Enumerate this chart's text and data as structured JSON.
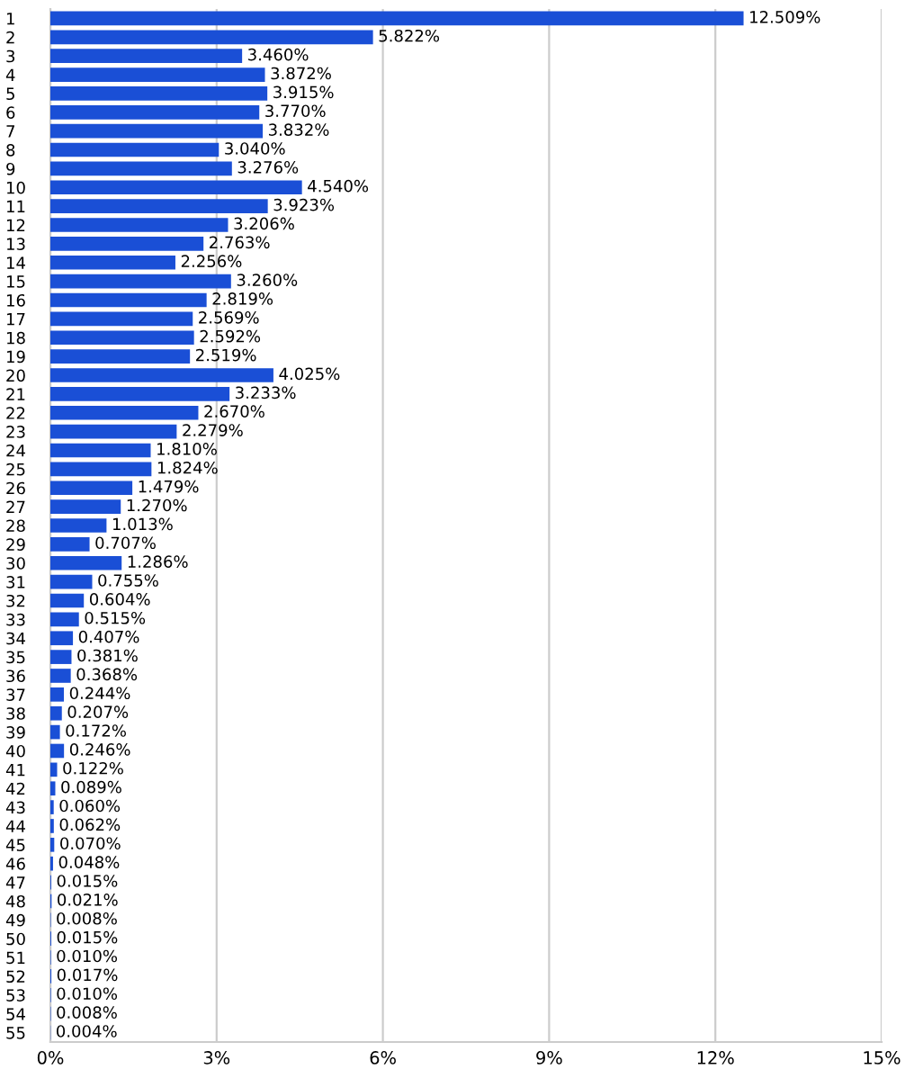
{
  "chart_data": {
    "type": "bar",
    "orientation": "horizontal",
    "categories": [
      "1",
      "2",
      "3",
      "4",
      "5",
      "6",
      "7",
      "8",
      "9",
      "10",
      "11",
      "12",
      "13",
      "14",
      "15",
      "16",
      "17",
      "18",
      "19",
      "20",
      "21",
      "22",
      "23",
      "24",
      "25",
      "26",
      "27",
      "28",
      "29",
      "30",
      "31",
      "32",
      "33",
      "34",
      "35",
      "36",
      "37",
      "38",
      "39",
      "40",
      "41",
      "42",
      "43",
      "44",
      "45",
      "46",
      "47",
      "48",
      "49",
      "50",
      "51",
      "52",
      "53",
      "54",
      "55"
    ],
    "values": [
      12.509,
      5.822,
      3.46,
      3.872,
      3.915,
      3.77,
      3.832,
      3.04,
      3.276,
      4.54,
      3.923,
      3.206,
      2.763,
      2.256,
      3.26,
      2.819,
      2.569,
      2.592,
      2.519,
      4.025,
      3.233,
      2.67,
      2.279,
      1.81,
      1.824,
      1.479,
      1.27,
      1.013,
      0.707,
      1.286,
      0.755,
      0.604,
      0.515,
      0.407,
      0.381,
      0.368,
      0.244,
      0.207,
      0.172,
      0.246,
      0.122,
      0.089,
      0.06,
      0.062,
      0.07,
      0.048,
      0.015,
      0.021,
      0.008,
      0.015,
      0.01,
      0.017,
      0.01,
      0.008,
      0.004
    ],
    "value_labels": [
      "12.509%",
      "5.822%",
      "3.460%",
      "3.872%",
      "3.915%",
      "3.770%",
      "3.832%",
      "3.040%",
      "3.276%",
      "4.540%",
      "3.923%",
      "3.206%",
      "2.763%",
      "2.256%",
      "3.260%",
      "2.819%",
      "2.569%",
      "2.592%",
      "2.519%",
      "4.025%",
      "3.233%",
      "2.670%",
      "2.279%",
      "1.810%",
      "1.824%",
      "1.479%",
      "1.270%",
      "1.013%",
      "0.707%",
      "1.286%",
      "0.755%",
      "0.604%",
      "0.515%",
      "0.407%",
      "0.381%",
      "0.368%",
      "0.244%",
      "0.207%",
      "0.172%",
      "0.246%",
      "0.122%",
      "0.089%",
      "0.060%",
      "0.062%",
      "0.070%",
      "0.048%",
      "0.015%",
      "0.021%",
      "0.008%",
      "0.015%",
      "0.010%",
      "0.017%",
      "0.010%",
      "0.008%",
      "0.004%"
    ],
    "color": "#1a4fd6",
    "xlim": [
      0,
      15
    ],
    "xticks": [
      {
        "value": 0,
        "label": "0%"
      },
      {
        "value": 3,
        "label": "3%"
      },
      {
        "value": 6,
        "label": "6%"
      },
      {
        "value": 9,
        "label": "9%"
      },
      {
        "value": 12,
        "label": "12%"
      },
      {
        "value": 15,
        "label": "15%"
      }
    ],
    "grid": "x",
    "legend": false
  }
}
